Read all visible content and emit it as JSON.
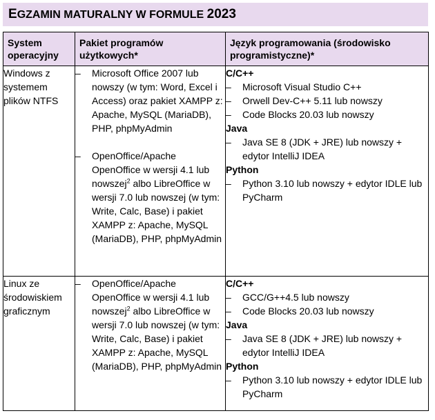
{
  "title": {
    "first": "E",
    "rest": "GZAMIN MATURALNY W FORMULE ",
    "year": "2023"
  },
  "columns": {
    "os": "System operacyjny",
    "packages": "Pakiet programów użytkowych*",
    "languages": "Język programowania (środowisko programistyczne)*"
  },
  "rows": [
    {
      "os": "Windows z systemem plików NTFS",
      "packages": [
        {
          "text": "Microsoft Office 2007 lub nowszy (w tym: Word, Excel i Access) oraz pakiet XAMPP z: Apache, MySQL (MariaDB), PHP, phpMyAdmin"
        },
        {
          "text_a": "OpenOffice/Apache OpenOffice w wersji 4.1 lub nowszej",
          "sup": "2",
          "text_b": " albo LibreOffice w wersji 7.0 lub nowszej (w tym: Write, Calc, Base) i pakiet XAMPP z: Apache, MySQL (MariaDB), PHP, phpMyAdmin"
        }
      ],
      "languages": [
        {
          "name": "C/C++",
          "items": [
            "Microsoft Visual Studio C++",
            "Orwell Dev-C++ 5.11 lub nowszy",
            "Code Blocks 20.03 lub nowszy"
          ]
        },
        {
          "name": "Java",
          "items": [
            "Java SE 8 (JDK + JRE) lub nowszy + edytor IntelliJ IDEA"
          ]
        },
        {
          "name": "Python",
          "items": [
            "Python 3.10 lub nowszy + edytor IDLE lub PyCharm"
          ]
        }
      ]
    },
    {
      "os": "Linux ze środowiskiem graficznym",
      "packages": [
        {
          "text_a": "OpenOffice/Apache OpenOffice w wersji 4.1 lub nowszej",
          "sup": "2",
          "text_b": " albo LibreOffice w wersji 7.0 lub nowszej (w tym: Write, Calc, Base) i pakiet XAMPP z: Apache, MySQL (MariaDB), PHP, phpMyAdmin"
        }
      ],
      "languages": [
        {
          "name": "C/C++",
          "items": [
            "GCC/G++4.5 lub nowszy",
            "Code Blocks 20.03 lub nowszy"
          ]
        },
        {
          "name": "Java",
          "items": [
            "Java SE 8 (JDK + JRE) lub nowszy + edytor IntelliJ IDEA"
          ]
        },
        {
          "name": "Python",
          "items": [
            "Python 3.10 lub nowszy + edytor IDLE lub PyCharm"
          ]
        }
      ]
    }
  ],
  "dash": "–"
}
